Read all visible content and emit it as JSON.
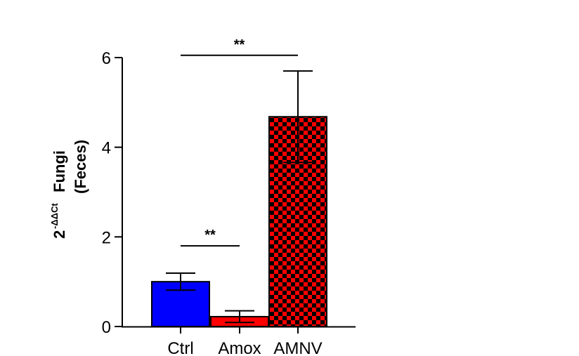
{
  "chart_data": {
    "type": "bar",
    "categories": [
      "Ctrl",
      "Amox",
      "AMNV"
    ],
    "values": [
      1.0,
      0.22,
      4.68
    ],
    "errors": [
      0.19,
      0.13,
      1.02
    ],
    "colors": [
      "#0000ff",
      "#ff0000",
      "#ff0000"
    ],
    "patterns": [
      "solid",
      "solid",
      "checkerboard"
    ],
    "ylabel_base": "2",
    "ylabel_sup": "-ΔΔCt",
    "ylabel_line1": "Fungi",
    "ylabel_line2": "(Feces)",
    "yticks": [
      "0",
      "2",
      "4",
      "6"
    ],
    "ylim": [
      0,
      6
    ],
    "significance": [
      {
        "from": "Ctrl",
        "to": "Amox",
        "y": 1.8,
        "label": "**"
      },
      {
        "from": "Ctrl",
        "to": "AMNV",
        "y": 6.05,
        "label": "**"
      }
    ]
  }
}
